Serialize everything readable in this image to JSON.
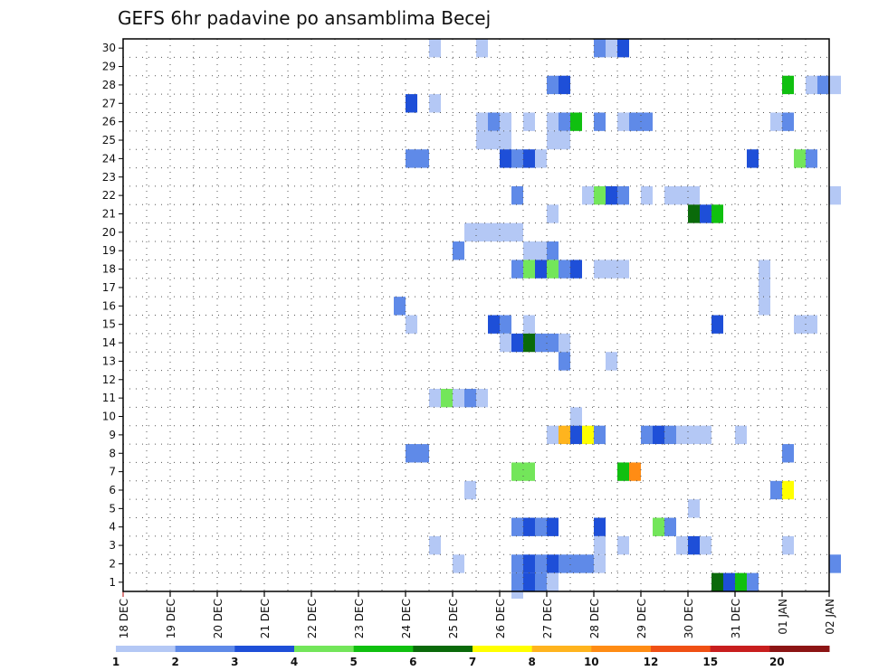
{
  "chart_data": {
    "type": "heatmap",
    "title": "GEFS 6hr padavine po ansamblima Becej",
    "y_categories": [
      "1",
      "2",
      "3",
      "4",
      "5",
      "6",
      "7",
      "8",
      "9",
      "10",
      "11",
      "12",
      "13",
      "14",
      "15",
      "16",
      "17",
      "18",
      "19",
      "20",
      "21",
      "22",
      "23",
      "24",
      "25",
      "26",
      "27",
      "28",
      "29",
      "30"
    ],
    "x_tick_labels": [
      "18 DEC",
      "19 DEC",
      "20 DEC",
      "21 DEC",
      "22 DEC",
      "23 DEC",
      "24 DEC",
      "25 DEC",
      "26 DEC",
      "27 DEC",
      "28 DEC",
      "29 DEC",
      "30 DEC",
      "31 DEC",
      "01 JAN",
      "02 JAN"
    ],
    "x_range_days": [
      0,
      15
    ],
    "grid": true,
    "colorbar": {
      "levels": [
        "1",
        "2",
        "3",
        "4",
        "5",
        "6",
        "7",
        "8",
        "10",
        "12",
        "15",
        "20"
      ],
      "colors": [
        "#b4c8f5",
        "#5f8ae8",
        "#1e4fd8",
        "#73e65a",
        "#10c010",
        "#0a6a0a",
        "#ffff00",
        "#ffb41e",
        "#ff8c14",
        "#f05014",
        "#c81e1e",
        "#8c1414"
      ]
    },
    "cells": [
      [
        30,
        6.5,
        1
      ],
      [
        30,
        7.5,
        1
      ],
      [
        30,
        10.0,
        2
      ],
      [
        30,
        10.25,
        1
      ],
      [
        30,
        10.5,
        3
      ],
      [
        28,
        9.0,
        2
      ],
      [
        28,
        9.25,
        3
      ],
      [
        28,
        14.0,
        5
      ],
      [
        28,
        14.5,
        1
      ],
      [
        28,
        14.75,
        2
      ],
      [
        28,
        15.0,
        1
      ],
      [
        27,
        6.0,
        3
      ],
      [
        27,
        6.5,
        1
      ],
      [
        26,
        7.5,
        1
      ],
      [
        26,
        7.75,
        2
      ],
      [
        26,
        8.0,
        1
      ],
      [
        26,
        8.5,
        1
      ],
      [
        26,
        9.0,
        1
      ],
      [
        26,
        9.25,
        2
      ],
      [
        26,
        9.5,
        5
      ],
      [
        26,
        10.0,
        2
      ],
      [
        26,
        10.5,
        1
      ],
      [
        26,
        10.75,
        2
      ],
      [
        26,
        11.0,
        2
      ],
      [
        26,
        13.75,
        1
      ],
      [
        26,
        14.0,
        2
      ],
      [
        25,
        7.5,
        1
      ],
      [
        25,
        7.75,
        1
      ],
      [
        25,
        8.0,
        1
      ],
      [
        25,
        9.0,
        1
      ],
      [
        25,
        9.25,
        1
      ],
      [
        24,
        6.0,
        2
      ],
      [
        24,
        6.25,
        2
      ],
      [
        24,
        8.0,
        3
      ],
      [
        24,
        8.25,
        2
      ],
      [
        24,
        8.5,
        3
      ],
      [
        24,
        8.75,
        1
      ],
      [
        24,
        13.25,
        3
      ],
      [
        24,
        14.25,
        4
      ],
      [
        24,
        14.5,
        2
      ],
      [
        22,
        8.25,
        2
      ],
      [
        22,
        9.75,
        1
      ],
      [
        22,
        10.0,
        4
      ],
      [
        22,
        10.25,
        3
      ],
      [
        22,
        10.5,
        2
      ],
      [
        22,
        11.0,
        1
      ],
      [
        22,
        11.5,
        1
      ],
      [
        22,
        11.75,
        1
      ],
      [
        22,
        12.0,
        1
      ],
      [
        22,
        15.0,
        1
      ],
      [
        21,
        9.0,
        1
      ],
      [
        21,
        12.0,
        6
      ],
      [
        21,
        12.25,
        3
      ],
      [
        21,
        12.5,
        5
      ],
      [
        20,
        7.25,
        1
      ],
      [
        20,
        7.5,
        1
      ],
      [
        20,
        7.75,
        1
      ],
      [
        20,
        8.0,
        1
      ],
      [
        20,
        8.25,
        1
      ],
      [
        19,
        7.0,
        2
      ],
      [
        19,
        8.5,
        1
      ],
      [
        19,
        8.75,
        1
      ],
      [
        19,
        9.0,
        2
      ],
      [
        18,
        8.25,
        2
      ],
      [
        18,
        8.5,
        4
      ],
      [
        18,
        8.75,
        3
      ],
      [
        18,
        9.0,
        4
      ],
      [
        18,
        9.25,
        2
      ],
      [
        18,
        9.5,
        3
      ],
      [
        18,
        10.0,
        1
      ],
      [
        18,
        10.25,
        1
      ],
      [
        18,
        10.5,
        1
      ],
      [
        18,
        13.5,
        1
      ],
      [
        17,
        13.5,
        1
      ],
      [
        16,
        5.75,
        2
      ],
      [
        16,
        13.5,
        1
      ],
      [
        15,
        6.0,
        1
      ],
      [
        15,
        7.75,
        3
      ],
      [
        15,
        8.0,
        2
      ],
      [
        15,
        8.5,
        1
      ],
      [
        15,
        12.5,
        3
      ],
      [
        15,
        14.25,
        1
      ],
      [
        15,
        14.5,
        1
      ],
      [
        14,
        8.0,
        1
      ],
      [
        14,
        8.25,
        3
      ],
      [
        14,
        8.5,
        6
      ],
      [
        14,
        8.75,
        2
      ],
      [
        14,
        9.0,
        2
      ],
      [
        14,
        9.25,
        1
      ],
      [
        13,
        9.25,
        2
      ],
      [
        13,
        10.25,
        1
      ],
      [
        11,
        6.5,
        1
      ],
      [
        11,
        6.75,
        4
      ],
      [
        11,
        7.0,
        1
      ],
      [
        11,
        7.25,
        2
      ],
      [
        11,
        7.5,
        1
      ],
      [
        10,
        9.5,
        1
      ],
      [
        9,
        9.0,
        1
      ],
      [
        9,
        9.25,
        8
      ],
      [
        9,
        9.5,
        3
      ],
      [
        9,
        9.75,
        7
      ],
      [
        9,
        10.0,
        2
      ],
      [
        9,
        11.0,
        2
      ],
      [
        9,
        11.25,
        3
      ],
      [
        9,
        11.5,
        2
      ],
      [
        9,
        11.75,
        1
      ],
      [
        9,
        12.0,
        1
      ],
      [
        9,
        12.25,
        1
      ],
      [
        9,
        13.0,
        1
      ],
      [
        8,
        6.0,
        2
      ],
      [
        8,
        6.25,
        2
      ],
      [
        8,
        14.0,
        2
      ],
      [
        7,
        8.25,
        4
      ],
      [
        7,
        8.5,
        4
      ],
      [
        7,
        10.5,
        5
      ],
      [
        7,
        10.75,
        9
      ],
      [
        6,
        7.25,
        1
      ],
      [
        6,
        13.75,
        2
      ],
      [
        6,
        14.0,
        7
      ],
      [
        5,
        12.0,
        1
      ],
      [
        4,
        8.25,
        2
      ],
      [
        4,
        8.5,
        3
      ],
      [
        4,
        8.75,
        2
      ],
      [
        4,
        9.0,
        3
      ],
      [
        4,
        10.0,
        3
      ],
      [
        4,
        11.25,
        4
      ],
      [
        4,
        11.5,
        2
      ],
      [
        3,
        6.5,
        1
      ],
      [
        3,
        10.0,
        1
      ],
      [
        3,
        10.5,
        1
      ],
      [
        3,
        11.75,
        1
      ],
      [
        3,
        12.0,
        3
      ],
      [
        3,
        12.25,
        1
      ],
      [
        3,
        14.0,
        1
      ],
      [
        2,
        7.0,
        1
      ],
      [
        2,
        8.25,
        2
      ],
      [
        2,
        8.5,
        3
      ],
      [
        2,
        8.75,
        2
      ],
      [
        2,
        9.0,
        3
      ],
      [
        2,
        9.25,
        2
      ],
      [
        2,
        9.5,
        2
      ],
      [
        2,
        9.75,
        2
      ],
      [
        2,
        10.0,
        1
      ],
      [
        2,
        15.0,
        2
      ],
      [
        1,
        8.25,
        2
      ],
      [
        1,
        8.5,
        3
      ],
      [
        1,
        8.75,
        2
      ],
      [
        1,
        9.0,
        1
      ],
      [
        1,
        12.5,
        6
      ],
      [
        1,
        12.75,
        3
      ],
      [
        1,
        13.0,
        5
      ],
      [
        1,
        13.25,
        2
      ]
    ],
    "extra_cells_below": [
      [
        8.25,
        1
      ]
    ]
  }
}
